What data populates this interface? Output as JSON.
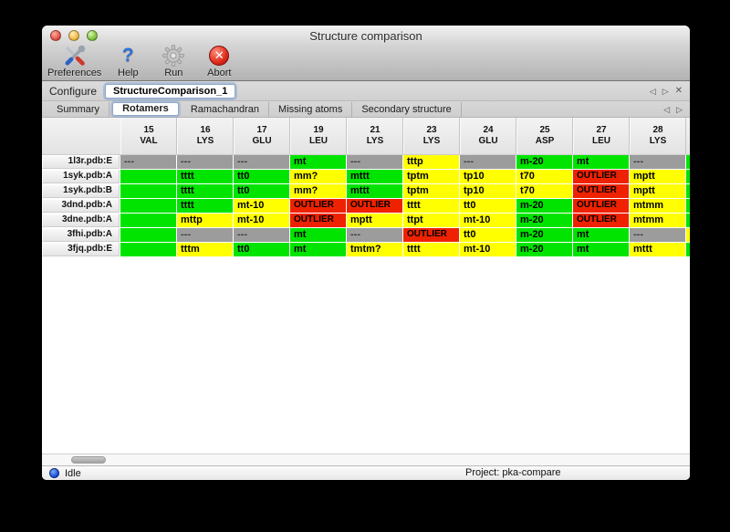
{
  "window": {
    "title": "Structure comparison"
  },
  "toolbar": {
    "preferences_label": "Preferences",
    "help_label": "Help",
    "run_label": "Run",
    "abort_label": "Abort",
    "help_glyph": "?",
    "abort_glyph": "✕"
  },
  "configure_row": {
    "label": "Configure",
    "value": "StructureComparison_1"
  },
  "pane_nav": {
    "back": "◁",
    "forward": "▷",
    "close": "✕"
  },
  "tabs": {
    "selected": "Rotamers",
    "items": [
      "Summary",
      "Rotamers",
      "Ramachandran",
      "Missing atoms",
      "Secondary structure"
    ]
  },
  "rotamer_table": {
    "status_colors": {
      "favored": "#00e400",
      "allowed": "#ffff00",
      "outlier": "#ee2200",
      "missing": "#9c9c9c"
    },
    "columns": [
      {
        "num": "15",
        "res": "VAL"
      },
      {
        "num": "16",
        "res": "LYS"
      },
      {
        "num": "17",
        "res": "GLU"
      },
      {
        "num": "19",
        "res": "LEU"
      },
      {
        "num": "21",
        "res": "LYS"
      },
      {
        "num": "23",
        "res": "LYS"
      },
      {
        "num": "24",
        "res": "GLU"
      },
      {
        "num": "25",
        "res": "ASP"
      },
      {
        "num": "27",
        "res": "LEU"
      },
      {
        "num": "28",
        "res": "LYS"
      }
    ],
    "rows": [
      {
        "label": "1l3r.pdb:E",
        "overflow": "favored",
        "cells": [
          [
            "missing",
            "---"
          ],
          [
            "missing",
            "---"
          ],
          [
            "missing",
            "---"
          ],
          [
            "favored",
            "mt"
          ],
          [
            "missing",
            "---"
          ],
          [
            "allowed",
            "tttp"
          ],
          [
            "missing",
            "---"
          ],
          [
            "favored",
            "m-20"
          ],
          [
            "favored",
            "mt"
          ],
          [
            "missing",
            "---"
          ]
        ]
      },
      {
        "label": "1syk.pdb:A",
        "overflow": "favored",
        "cells": [
          [
            "favored",
            ""
          ],
          [
            "favored",
            "tttt"
          ],
          [
            "favored",
            "tt0"
          ],
          [
            "allowed",
            "mm?"
          ],
          [
            "favored",
            "mttt"
          ],
          [
            "allowed",
            "tptm"
          ],
          [
            "allowed",
            "tp10"
          ],
          [
            "allowed",
            "t70"
          ],
          [
            "outlier",
            "OUTLIER"
          ],
          [
            "allowed",
            "mptt"
          ]
        ]
      },
      {
        "label": "1syk.pdb:B",
        "overflow": "favored",
        "cells": [
          [
            "favored",
            ""
          ],
          [
            "favored",
            "tttt"
          ],
          [
            "favored",
            "tt0"
          ],
          [
            "allowed",
            "mm?"
          ],
          [
            "favored",
            "mttt"
          ],
          [
            "allowed",
            "tptm"
          ],
          [
            "allowed",
            "tp10"
          ],
          [
            "allowed",
            "t70"
          ],
          [
            "outlier",
            "OUTLIER"
          ],
          [
            "allowed",
            "mptt"
          ]
        ]
      },
      {
        "label": "3dnd.pdb:A",
        "overflow": "favored",
        "cells": [
          [
            "favored",
            ""
          ],
          [
            "favored",
            "tttt"
          ],
          [
            "allowed",
            "mt-10"
          ],
          [
            "outlier",
            "OUTLIER"
          ],
          [
            "outlier",
            "OUTLIER"
          ],
          [
            "allowed",
            "tttt"
          ],
          [
            "allowed",
            "tt0"
          ],
          [
            "favored",
            "m-20"
          ],
          [
            "outlier",
            "OUTLIER"
          ],
          [
            "allowed",
            "mtmm"
          ]
        ]
      },
      {
        "label": "3dne.pdb:A",
        "overflow": "favored",
        "cells": [
          [
            "favored",
            ""
          ],
          [
            "allowed",
            "mttp"
          ],
          [
            "allowed",
            "mt-10"
          ],
          [
            "outlier",
            "OUTLIER"
          ],
          [
            "allowed",
            "mptt"
          ],
          [
            "allowed",
            "ttpt"
          ],
          [
            "allowed",
            "mt-10"
          ],
          [
            "favored",
            "m-20"
          ],
          [
            "outlier",
            "OUTLIER"
          ],
          [
            "allowed",
            "mtmm"
          ]
        ]
      },
      {
        "label": "3fhi.pdb:A",
        "overflow": "allowed",
        "cells": [
          [
            "favored",
            ""
          ],
          [
            "missing",
            "---"
          ],
          [
            "missing",
            "---"
          ],
          [
            "favored",
            "mt"
          ],
          [
            "missing",
            "---"
          ],
          [
            "outlier",
            "OUTLIER"
          ],
          [
            "allowed",
            "tt0"
          ],
          [
            "favored",
            "m-20"
          ],
          [
            "favored",
            "mt"
          ],
          [
            "missing",
            "---"
          ]
        ]
      },
      {
        "label": "3fjq.pdb:E",
        "overflow": "favored",
        "cells": [
          [
            "favored",
            ""
          ],
          [
            "allowed",
            "tttm"
          ],
          [
            "favored",
            "tt0"
          ],
          [
            "favored",
            "mt"
          ],
          [
            "allowed",
            "tmtm?"
          ],
          [
            "allowed",
            "tttt"
          ],
          [
            "allowed",
            "mt-10"
          ],
          [
            "favored",
            "m-20"
          ],
          [
            "favored",
            "mt"
          ],
          [
            "allowed",
            "mttt"
          ]
        ]
      }
    ]
  },
  "status_bar": {
    "state": "Idle",
    "project": "Project: pka-compare"
  }
}
